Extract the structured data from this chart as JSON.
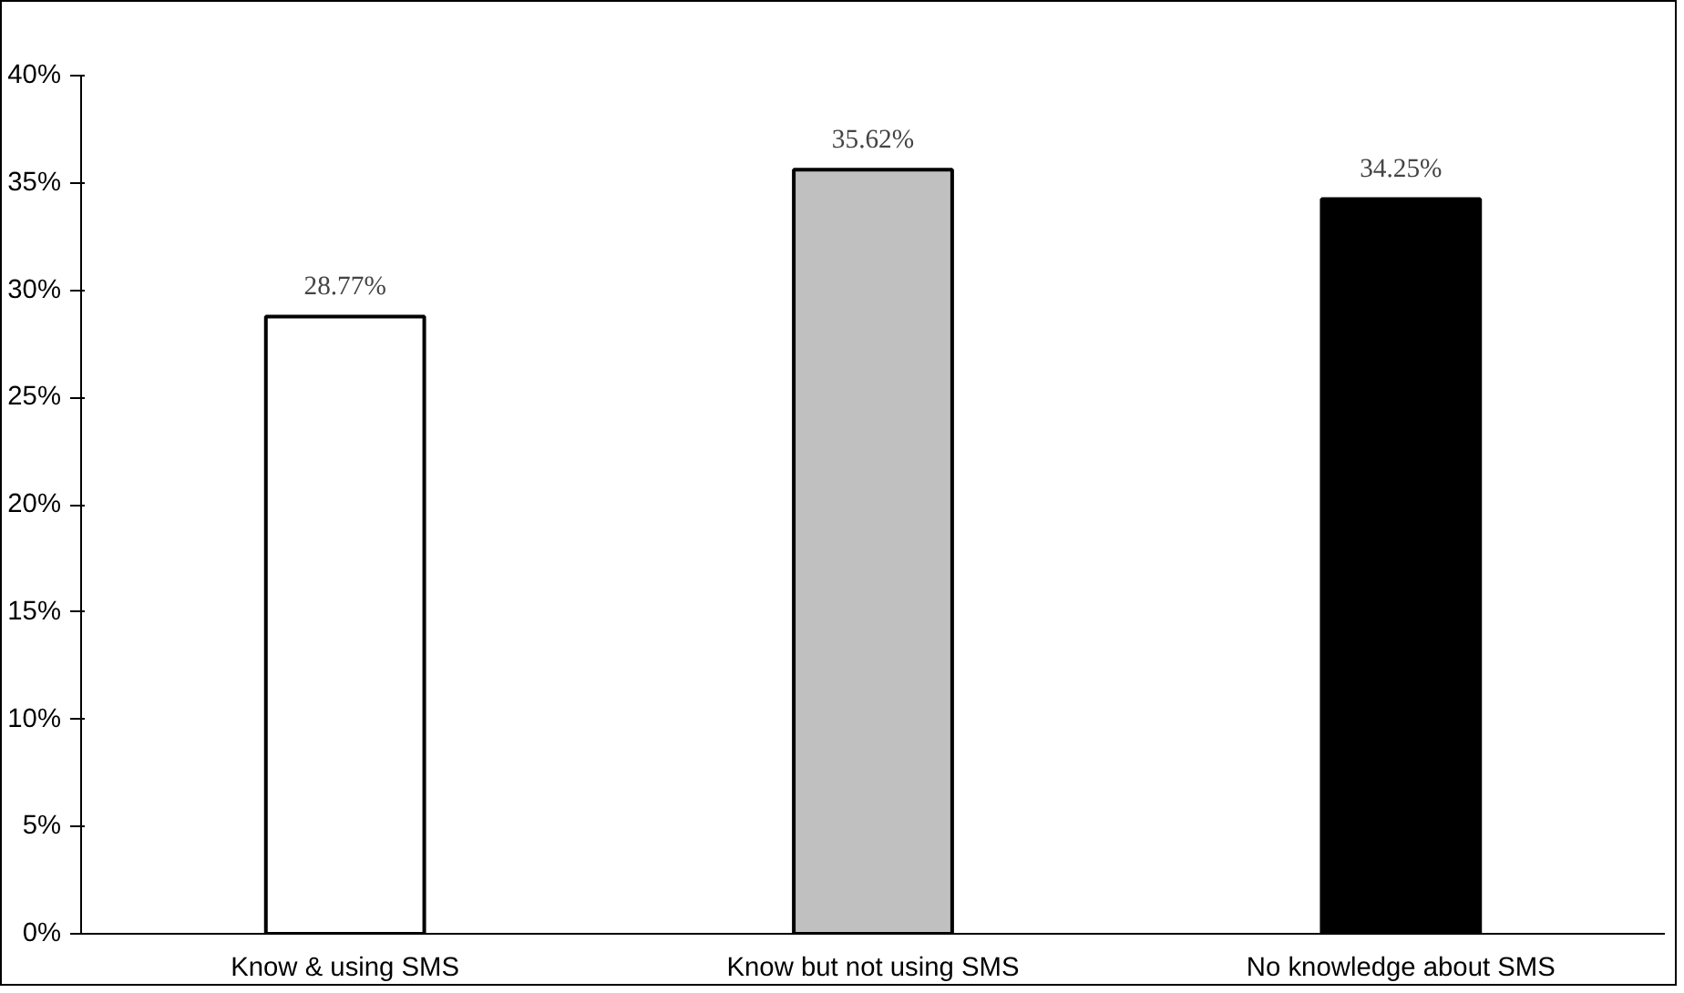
{
  "chart_data": {
    "type": "bar",
    "categories": [
      "Know & using SMS",
      "Know but not using SMS",
      "No knowledge about SMS"
    ],
    "values": [
      28.77,
      35.62,
      34.25
    ],
    "colors": [
      "#ffffff",
      "#c0c0c0",
      "#000000"
    ],
    "value_labels": [
      "28.77%",
      "35.62%",
      "34.25%"
    ],
    "ylim": [
      0,
      40
    ],
    "yticks": [
      {
        "value": 0,
        "label": "0%"
      },
      {
        "value": 5,
        "label": "5%"
      },
      {
        "value": 10,
        "label": "10%"
      },
      {
        "value": 15,
        "label": "15%"
      },
      {
        "value": 20,
        "label": "20%"
      },
      {
        "value": 25,
        "label": "25%"
      },
      {
        "value": 30,
        "label": "30%"
      },
      {
        "value": 35,
        "label": "35%"
      },
      {
        "value": 40,
        "label": "40%"
      }
    ],
    "grid": false
  }
}
